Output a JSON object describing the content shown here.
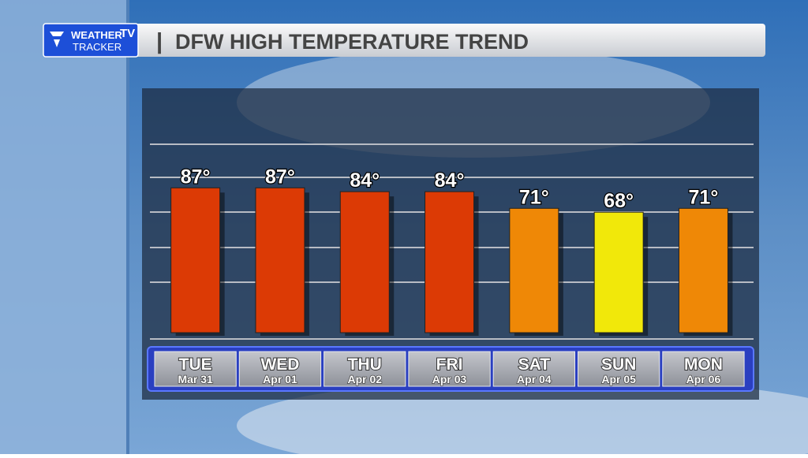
{
  "logo": {
    "line1": "WEATHER",
    "tv": "TV",
    "line2": "TRACKER"
  },
  "chart_data": {
    "type": "bar",
    "title": "DFW HIGH TEMPERATURE TREND",
    "categories": [
      "TUE",
      "WED",
      "THU",
      "FRI",
      "SAT",
      "SUN",
      "MON"
    ],
    "dates": [
      "Mar 31",
      "Apr 01",
      "Apr 02",
      "Apr 03",
      "Apr 04",
      "Apr 05",
      "Apr 06"
    ],
    "values": [
      87,
      87,
      84,
      84,
      71,
      68,
      71
    ],
    "value_labels": [
      "87°",
      "87°",
      "84°",
      "84°",
      "71°",
      "68°",
      "71°"
    ],
    "colors": [
      "#dc3a05",
      "#dc3a05",
      "#dc3a05",
      "#dc3a05",
      "#ef8806",
      "#f1e80a",
      "#ef8806"
    ],
    "ylim": [
      -26,
      121
    ]
  }
}
